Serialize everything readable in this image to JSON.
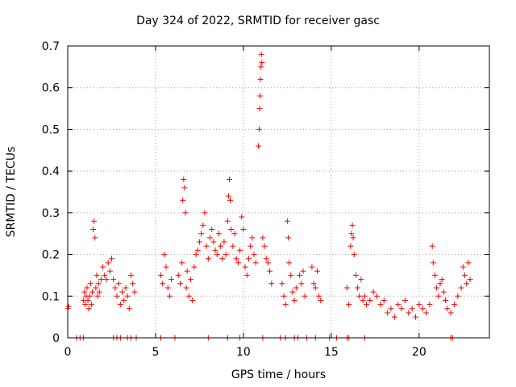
{
  "chart_data": {
    "type": "scatter",
    "title": "Day 324 of 2022, SRMTID for receiver gasc",
    "xlabel": "GPS time / hours",
    "ylabel": "SRMTID / TECUs",
    "xlim": [
      0,
      24
    ],
    "ylim": [
      0,
      0.7
    ],
    "xticks": [
      0,
      5,
      10,
      15,
      20
    ],
    "yticks": [
      0,
      0.1,
      0.2,
      0.3,
      0.4,
      0.5,
      0.6,
      0.7
    ],
    "grid": true,
    "marker": "+",
    "color": "#ff0000",
    "series": [
      {
        "name": "SRMTID",
        "points": [
          [
            0.0,
            0.07
          ],
          [
            0.05,
            0.075
          ],
          [
            0.9,
            0.09
          ],
          [
            0.95,
            0.11
          ],
          [
            1.0,
            0.08
          ],
          [
            1.05,
            0.1
          ],
          [
            1.1,
            0.12
          ],
          [
            1.15,
            0.09
          ],
          [
            1.2,
            0.07
          ],
          [
            1.25,
            0.1
          ],
          [
            1.3,
            0.13
          ],
          [
            1.35,
            0.08
          ],
          [
            1.4,
            0.11
          ],
          [
            1.45,
            0.26
          ],
          [
            1.5,
            0.28
          ],
          [
            1.55,
            0.24
          ],
          [
            1.6,
            0.12
          ],
          [
            1.65,
            0.15
          ],
          [
            1.7,
            0.1
          ],
          [
            1.75,
            0.13
          ],
          [
            1.8,
            0.11
          ],
          [
            1.9,
            0.14
          ],
          [
            2.0,
            0.17
          ],
          [
            2.1,
            0.15
          ],
          [
            2.2,
            0.14
          ],
          [
            2.3,
            0.18
          ],
          [
            2.4,
            0.16
          ],
          [
            2.5,
            0.19
          ],
          [
            2.6,
            0.14
          ],
          [
            2.7,
            0.12
          ],
          [
            2.8,
            0.1
          ],
          [
            2.9,
            0.13
          ],
          [
            3.0,
            0.08
          ],
          [
            3.1,
            0.11
          ],
          [
            3.2,
            0.09
          ],
          [
            3.3,
            0.12
          ],
          [
            3.4,
            0.1
          ],
          [
            3.5,
            0.07
          ],
          [
            3.6,
            0.15
          ],
          [
            3.7,
            0.13
          ],
          [
            3.8,
            0.11
          ],
          [
            5.3,
            0.15
          ],
          [
            5.4,
            0.13
          ],
          [
            5.5,
            0.2
          ],
          [
            5.6,
            0.17
          ],
          [
            5.7,
            0.12
          ],
          [
            5.8,
            0.1
          ],
          [
            5.9,
            0.14
          ],
          [
            6.3,
            0.15
          ],
          [
            6.4,
            0.13
          ],
          [
            6.5,
            0.18
          ],
          [
            6.55,
            0.33
          ],
          [
            6.6,
            0.38
          ],
          [
            6.65,
            0.36
          ],
          [
            6.7,
            0.3
          ],
          [
            6.75,
            0.12
          ],
          [
            6.8,
            0.16
          ],
          [
            6.9,
            0.1
          ],
          [
            7.0,
            0.14
          ],
          [
            7.1,
            0.09
          ],
          [
            7.2,
            0.17
          ],
          [
            7.3,
            0.2
          ],
          [
            7.4,
            0.21
          ],
          [
            7.5,
            0.23
          ],
          [
            7.6,
            0.25
          ],
          [
            7.7,
            0.27
          ],
          [
            7.8,
            0.3
          ],
          [
            7.9,
            0.22
          ],
          [
            8.0,
            0.19
          ],
          [
            8.1,
            0.24
          ],
          [
            8.2,
            0.26
          ],
          [
            8.3,
            0.23
          ],
          [
            8.4,
            0.21
          ],
          [
            8.5,
            0.2
          ],
          [
            8.6,
            0.25
          ],
          [
            8.7,
            0.22
          ],
          [
            8.8,
            0.19
          ],
          [
            8.9,
            0.23
          ],
          [
            9.0,
            0.2
          ],
          [
            9.1,
            0.28
          ],
          [
            9.15,
            0.34
          ],
          [
            9.2,
            0.38
          ],
          [
            9.25,
            0.33
          ],
          [
            9.3,
            0.26
          ],
          [
            9.4,
            0.22
          ],
          [
            9.5,
            0.25
          ],
          [
            9.6,
            0.19
          ],
          [
            9.7,
            0.18
          ],
          [
            9.8,
            0.21
          ],
          [
            9.9,
            0.29
          ],
          [
            10.0,
            0.26
          ],
          [
            10.1,
            0.17
          ],
          [
            10.2,
            0.15
          ],
          [
            10.3,
            0.19
          ],
          [
            10.4,
            0.22
          ],
          [
            10.5,
            0.24
          ],
          [
            10.6,
            0.2
          ],
          [
            10.7,
            0.18
          ],
          [
            10.85,
            0.46
          ],
          [
            10.9,
            0.5
          ],
          [
            10.92,
            0.55
          ],
          [
            10.95,
            0.58
          ],
          [
            10.97,
            0.62
          ],
          [
            11.0,
            0.65
          ],
          [
            11.02,
            0.68
          ],
          [
            11.05,
            0.66
          ],
          [
            11.1,
            0.24
          ],
          [
            11.2,
            0.22
          ],
          [
            11.3,
            0.19
          ],
          [
            11.4,
            0.18
          ],
          [
            11.5,
            0.16
          ],
          [
            11.6,
            0.13
          ],
          [
            12.2,
            0.13
          ],
          [
            12.3,
            0.1
          ],
          [
            12.4,
            0.08
          ],
          [
            12.5,
            0.28
          ],
          [
            12.55,
            0.24
          ],
          [
            12.6,
            0.18
          ],
          [
            12.7,
            0.15
          ],
          [
            12.8,
            0.11
          ],
          [
            12.9,
            0.09
          ],
          [
            13.0,
            0.12
          ],
          [
            13.2,
            0.15
          ],
          [
            13.3,
            0.13
          ],
          [
            13.4,
            0.16
          ],
          [
            13.5,
            0.1
          ],
          [
            13.9,
            0.17
          ],
          [
            14.0,
            0.13
          ],
          [
            14.1,
            0.12
          ],
          [
            14.2,
            0.16
          ],
          [
            14.3,
            0.1
          ],
          [
            14.4,
            0.09
          ],
          [
            15.9,
            0.12
          ],
          [
            16.0,
            0.08
          ],
          [
            16.1,
            0.22
          ],
          [
            16.15,
            0.25
          ],
          [
            16.2,
            0.27
          ],
          [
            16.25,
            0.24
          ],
          [
            16.3,
            0.2
          ],
          [
            16.4,
            0.15
          ],
          [
            16.5,
            0.12
          ],
          [
            16.6,
            0.1
          ],
          [
            16.7,
            0.14
          ],
          [
            16.8,
            0.09
          ],
          [
            16.9,
            0.1
          ],
          [
            17.0,
            0.08
          ],
          [
            17.2,
            0.09
          ],
          [
            17.4,
            0.11
          ],
          [
            17.6,
            0.1
          ],
          [
            17.8,
            0.08
          ],
          [
            18.0,
            0.09
          ],
          [
            18.2,
            0.06
          ],
          [
            18.4,
            0.07
          ],
          [
            18.6,
            0.05
          ],
          [
            18.8,
            0.08
          ],
          [
            19.0,
            0.07
          ],
          [
            19.2,
            0.09
          ],
          [
            19.4,
            0.06
          ],
          [
            19.6,
            0.07
          ],
          [
            19.8,
            0.05
          ],
          [
            20.0,
            0.08
          ],
          [
            20.2,
            0.07
          ],
          [
            20.4,
            0.06
          ],
          [
            20.6,
            0.08
          ],
          [
            20.75,
            0.22
          ],
          [
            20.8,
            0.18
          ],
          [
            20.9,
            0.15
          ],
          [
            21.0,
            0.12
          ],
          [
            21.1,
            0.1
          ],
          [
            21.2,
            0.13
          ],
          [
            21.3,
            0.14
          ],
          [
            21.4,
            0.11
          ],
          [
            21.5,
            0.09
          ],
          [
            21.6,
            0.07
          ],
          [
            21.8,
            0.06
          ],
          [
            22.0,
            0.08
          ],
          [
            22.2,
            0.1
          ],
          [
            22.4,
            0.12
          ],
          [
            22.5,
            0.17
          ],
          [
            22.6,
            0.15
          ],
          [
            22.7,
            0.13
          ],
          [
            22.8,
            0.18
          ],
          [
            22.9,
            0.14
          ]
        ],
        "zero_points_x": [
          0.5,
          0.7,
          0.9,
          2.6,
          2.8,
          3.0,
          3.4,
          3.6,
          3.9,
          5.3,
          6.1,
          8.0,
          9.1,
          9.8,
          11.1,
          12.1,
          12.4,
          12.9,
          13.1,
          13.6,
          14.1,
          14.9,
          15.3,
          15.9,
          16.0,
          16.9,
          21.8,
          21.9
        ]
      }
    ]
  }
}
